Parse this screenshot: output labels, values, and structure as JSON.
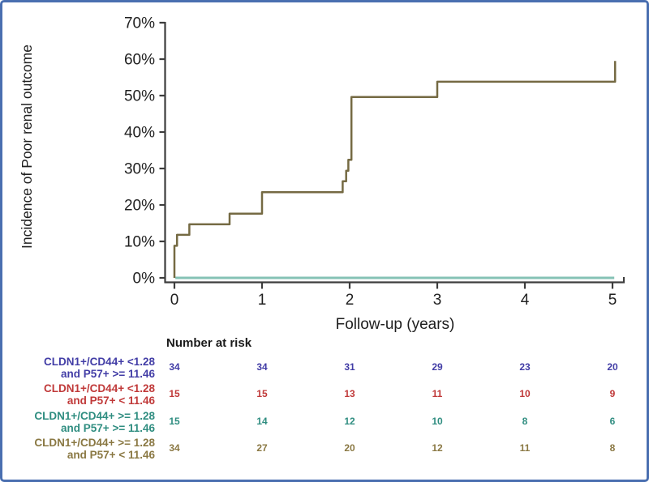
{
  "chart_data": {
    "type": "line",
    "subtype": "step-cumulative-incidence",
    "title": "",
    "xlabel": "Follow-up (years)",
    "ylabel": "Incidence of Poor renal outcome",
    "xlim": [
      0,
      5
    ],
    "ylim_percent": [
      0,
      70
    ],
    "grid": false,
    "x_ticks": [
      0,
      1,
      2,
      3,
      4,
      5
    ],
    "y_tick_labels": [
      "0%",
      "10%",
      "20%",
      "30%",
      "40%",
      "50%",
      "60%",
      "70%"
    ],
    "axis_color": "#3d3d3d",
    "series": [
      {
        "name": "CLDN1+/CD44+ >= 1.28 and P57+ >= 11.46",
        "color": "#85c2b5",
        "stroke_width": 3,
        "step_vertices": [
          [
            0.01,
            0
          ],
          [
            5.02,
            0
          ]
        ]
      },
      {
        "name": "CLDN1+/CD44+ >= 1.28 and P57+ < 11.46",
        "color": "#756a43",
        "stroke_width": 2.5,
        "step_vertices": [
          [
            0,
            0
          ],
          [
            0,
            8.8
          ],
          [
            0.03,
            8.8
          ],
          [
            0.03,
            11.8
          ],
          [
            0.17,
            11.8
          ],
          [
            0.17,
            14.7
          ],
          [
            0.63,
            14.7
          ],
          [
            0.63,
            17.6
          ],
          [
            1.0,
            17.6
          ],
          [
            1.0,
            23.5
          ],
          [
            1.92,
            23.5
          ],
          [
            1.92,
            26.5
          ],
          [
            1.96,
            26.5
          ],
          [
            1.96,
            29.4
          ],
          [
            1.985,
            29.4
          ],
          [
            1.985,
            32.4
          ],
          [
            2.02,
            32.4
          ],
          [
            2.02,
            49.6
          ],
          [
            3.0,
            49.6
          ],
          [
            3.0,
            53.8
          ],
          [
            5.03,
            53.8
          ],
          [
            5.03,
            59.5
          ]
        ]
      }
    ],
    "number_at_risk": {
      "header": "Number at risk",
      "times": [
        0,
        1,
        2,
        3,
        4,
        5
      ],
      "groups": [
        {
          "label_line1": "CLDN1+/CD44+ <1.28",
          "label_line2": "and P57+ >= 11.46",
          "color": "#423da6",
          "counts": [
            34,
            34,
            31,
            29,
            23,
            20
          ]
        },
        {
          "label_line1": "CLDN1+/CD44+ <1.28",
          "label_line2": "and P57+ < 11.46",
          "color": "#c03939",
          "counts": [
            15,
            15,
            13,
            11,
            10,
            9
          ]
        },
        {
          "label_line1": "CLDN1+/CD44+ >= 1.28",
          "label_line2": "and P57+ >= 11.46",
          "color": "#2f8d80",
          "counts": [
            15,
            14,
            12,
            10,
            8,
            6
          ]
        },
        {
          "label_line1": "CLDN1+/CD44+ >= 1.28",
          "label_line2": "and P57+ < 11.46",
          "color": "#8a7843",
          "counts": [
            34,
            27,
            20,
            12,
            11,
            8
          ]
        }
      ]
    }
  }
}
